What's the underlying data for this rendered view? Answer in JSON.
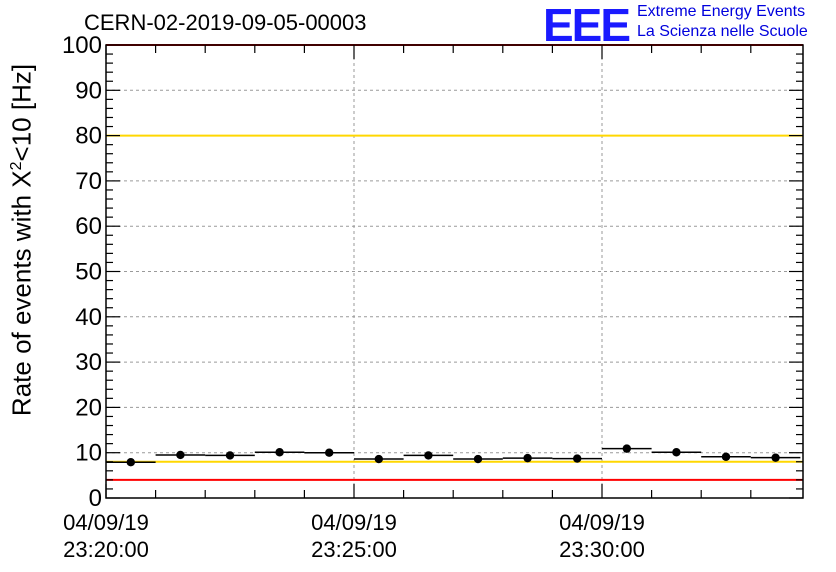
{
  "header": {
    "run_title": "CERN-02-2019-09-05-00003",
    "logo_text": "EEE",
    "logo_line1": "Extreme Energy Events",
    "logo_line2": "La Scienza nelle Scuole"
  },
  "chart_data": {
    "type": "scatter",
    "title": "CERN-02-2019-09-05-00003",
    "ylabel_prefix": "Rate of events with X",
    "ylabel_sup": "2",
    "ylabel_suffix": "<10 [Hz]",
    "ylim": [
      0,
      100
    ],
    "xlim_minutes": [
      0,
      13.5
    ],
    "yticks": [
      "0",
      "10",
      "20",
      "30",
      "40",
      "50",
      "60",
      "70",
      "80",
      "90",
      "100"
    ],
    "xticks": [
      {
        "line1": "04/09/19",
        "line2": "23:20:00",
        "minute": 0
      },
      {
        "line1": "04/09/19",
        "line2": "23:25:00",
        "minute": 5
      },
      {
        "line1": "04/09/19",
        "line2": "23:30:00",
        "minute": 10
      }
    ],
    "grid": true,
    "points": [
      {
        "x": 0.5,
        "y": 7.9
      },
      {
        "x": 1.5,
        "y": 9.5
      },
      {
        "x": 2.5,
        "y": 9.4
      },
      {
        "x": 3.5,
        "y": 10.1
      },
      {
        "x": 4.5,
        "y": 10.0
      },
      {
        "x": 5.5,
        "y": 8.6
      },
      {
        "x": 6.5,
        "y": 9.4
      },
      {
        "x": 7.5,
        "y": 8.6
      },
      {
        "x": 8.5,
        "y": 8.8
      },
      {
        "x": 9.5,
        "y": 8.7
      },
      {
        "x": 10.5,
        "y": 10.9
      },
      {
        "x": 11.5,
        "y": 10.1
      },
      {
        "x": 12.5,
        "y": 9.1
      },
      {
        "x": 13.5,
        "y": 8.9
      }
    ],
    "bin_width_minutes": 1,
    "reference_lines": [
      {
        "y": 100,
        "color": "#ff0000"
      },
      {
        "y": 80,
        "color": "#ffd700"
      },
      {
        "y": 8,
        "color": "#ffd700"
      },
      {
        "y": 4,
        "color": "#ff0000"
      }
    ]
  }
}
